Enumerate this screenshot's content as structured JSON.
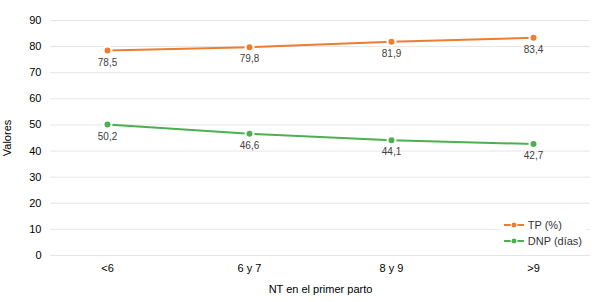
{
  "chart_data": {
    "type": "line",
    "categories": [
      "<6",
      "6 y 7",
      "8 y 9",
      ">9"
    ],
    "series": [
      {
        "name": "TP (%)",
        "color": "#ED7D31",
        "marker": "circle",
        "values": [
          78.5,
          79.8,
          81.9,
          83.4
        ],
        "value_labels": [
          "78,5",
          "79,8",
          "81,9",
          "83,4"
        ]
      },
      {
        "name": "DNP (días)",
        "color": "#4CAF50",
        "marker": "circle",
        "values": [
          50.2,
          46.6,
          44.1,
          42.7
        ],
        "value_labels": [
          "50,2",
          "46,6",
          "44,1",
          "42,7"
        ]
      }
    ],
    "xlabel": "NT en el primer parto",
    "ylabel": "Valores",
    "ylim": [
      0,
      90
    ],
    "yticks": [
      0,
      10,
      20,
      30,
      40,
      50,
      60,
      70,
      80,
      90
    ],
    "grid": true,
    "legend": "lower right",
    "data_labels": true
  }
}
